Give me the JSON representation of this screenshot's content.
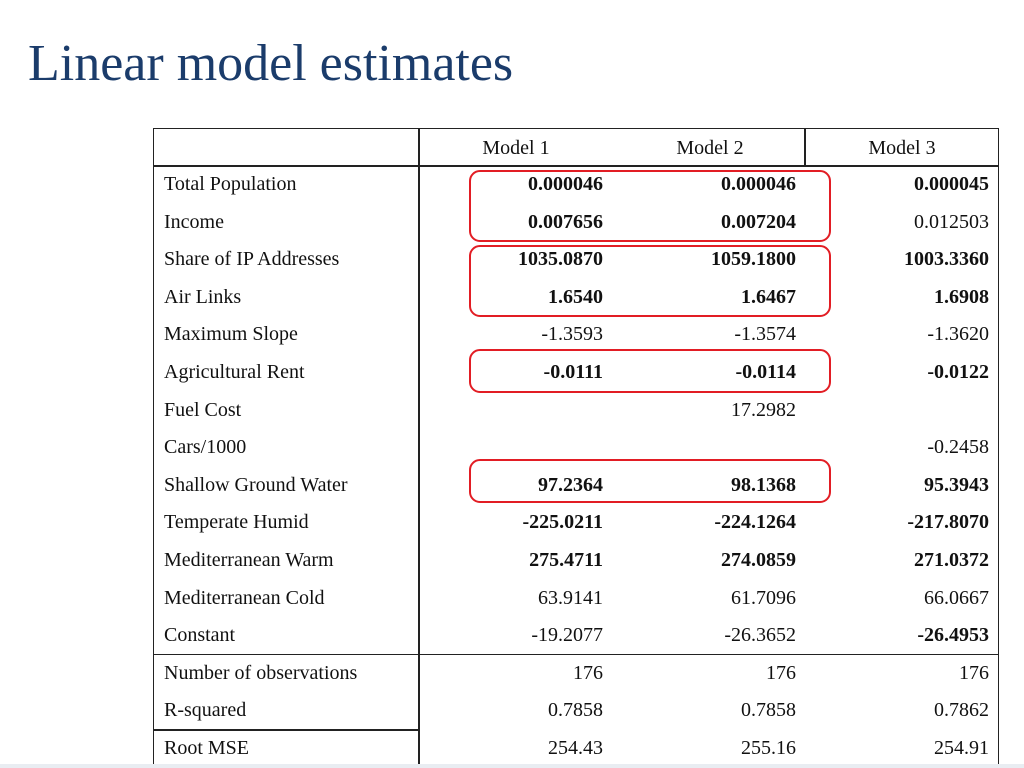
{
  "slide": {
    "title": "Linear model estimates"
  },
  "table": {
    "columns": [
      "",
      "Model 1",
      "Model 2",
      "Model 3"
    ],
    "rows": [
      {
        "label": "Total Population",
        "values": [
          "0.000046",
          "0.000046",
          "0.000045"
        ],
        "bold": [
          true,
          true,
          true
        ]
      },
      {
        "label": "Income",
        "values": [
          "0.007656",
          "0.007204",
          "0.012503"
        ],
        "bold": [
          true,
          true,
          false
        ]
      },
      {
        "label": "Share of IP Addresses",
        "values": [
          "1035.0870",
          "1059.1800",
          "1003.3360"
        ],
        "bold": [
          true,
          true,
          true
        ]
      },
      {
        "label": "Air Links",
        "values": [
          "1.6540",
          "1.6467",
          "1.6908"
        ],
        "bold": [
          true,
          true,
          true
        ]
      },
      {
        "label": "Maximum Slope",
        "values": [
          "-1.3593",
          "-1.3574",
          "-1.3620"
        ],
        "bold": [
          false,
          false,
          false
        ]
      },
      {
        "label": "Agricultural Rent",
        "values": [
          "-0.0111",
          "-0.0114",
          "-0.0122"
        ],
        "bold": [
          true,
          true,
          true
        ]
      },
      {
        "label": "Fuel Cost",
        "values": [
          "",
          "17.2982",
          ""
        ],
        "bold": [
          false,
          false,
          false
        ]
      },
      {
        "label": "Cars/1000",
        "values": [
          "",
          "",
          "-0.2458"
        ],
        "bold": [
          false,
          false,
          false
        ]
      },
      {
        "label": "Shallow Ground Water",
        "values": [
          "97.2364",
          "98.1368",
          "95.3943"
        ],
        "bold": [
          true,
          true,
          true
        ]
      },
      {
        "label": "Temperate Humid",
        "values": [
          "-225.0211",
          "-224.1264",
          "-217.8070"
        ],
        "bold": [
          true,
          true,
          true
        ]
      },
      {
        "label": "Mediterranean Warm",
        "values": [
          "275.4711",
          "274.0859",
          "271.0372"
        ],
        "bold": [
          true,
          true,
          true
        ]
      },
      {
        "label": "Mediterranean Cold",
        "values": [
          "63.9141",
          "61.7096",
          "66.0667"
        ],
        "bold": [
          false,
          false,
          false
        ]
      },
      {
        "label": "Constant",
        "values": [
          "-19.2077",
          "-26.3652",
          "-26.4953"
        ],
        "bold": [
          false,
          false,
          true
        ]
      }
    ],
    "stats": [
      {
        "label": "Number of observations",
        "values": [
          "176",
          "176",
          "176"
        ]
      },
      {
        "label": "R-squared",
        "values": [
          "0.7858",
          "0.7858",
          "0.7862"
        ]
      },
      {
        "label": "Root MSE",
        "values": [
          "254.43",
          "255.16",
          "254.91"
        ]
      }
    ],
    "highlight_color": "#e21d24"
  }
}
